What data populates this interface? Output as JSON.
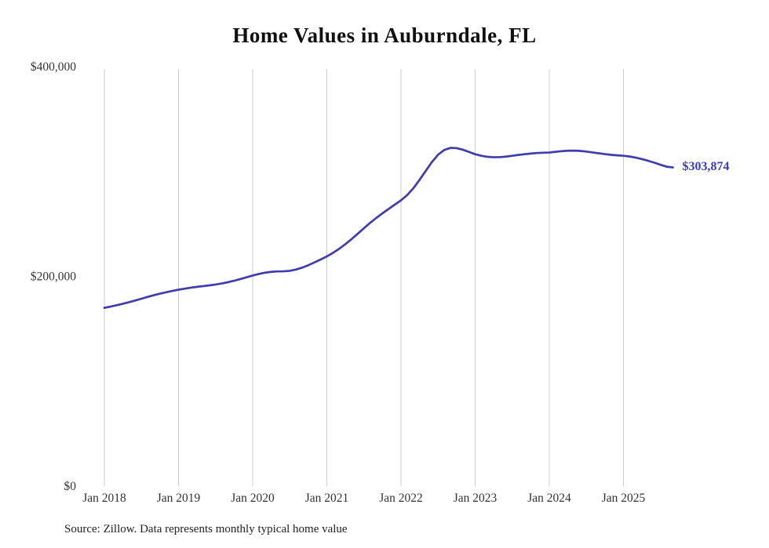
{
  "title": "Home Values in Auburndale, FL",
  "source_note": "Source: Zillow. Data represents monthly typical home value",
  "end_label": "$303,874",
  "colors": {
    "line": "#3d3db0",
    "end_label": "#3c3cbd",
    "grid": "#cccccc",
    "axis_text": "#333333",
    "title_text": "#111111",
    "background": "#ffffff"
  },
  "chart_data": {
    "type": "line",
    "title": "Home Values in Auburndale, FL",
    "xlabel": "",
    "ylabel": "",
    "x_start": "Jan 2018",
    "x_interval": "monthly",
    "x_tick_labels": [
      "Jan 2018",
      "Jan 2019",
      "Jan 2020",
      "Jan 2021",
      "Jan 2022",
      "Jan 2023",
      "Jan 2024",
      "Jan 2025"
    ],
    "y_ticks": [
      0,
      200000,
      400000
    ],
    "y_tick_labels": [
      "$0",
      "$200,000",
      "$400,000"
    ],
    "ylim": [
      0,
      400000
    ],
    "grid": "vertical-only",
    "legend": "none",
    "series": [
      {
        "name": "Typical home value",
        "values": [
          170000,
          171200,
          172500,
          173900,
          175400,
          177000,
          178700,
          180400,
          182000,
          183500,
          184800,
          186100,
          187300,
          188300,
          189200,
          190000,
          190700,
          191400,
          192200,
          193200,
          194400,
          195800,
          197400,
          199100,
          200800,
          202300,
          203500,
          204300,
          204700,
          204800,
          205300,
          206500,
          208300,
          210600,
          213300,
          216100,
          219000,
          222400,
          226300,
          230700,
          235500,
          240600,
          245900,
          251000,
          255700,
          260100,
          264300,
          268400,
          272500,
          277500,
          284000,
          292000,
          300500,
          309000,
          316000,
          320500,
          322500,
          322300,
          320800,
          318700,
          316500,
          315000,
          314000,
          313600,
          313700,
          314200,
          315000,
          315800,
          316500,
          317100,
          317600,
          317900,
          318100,
          318800,
          319400,
          319800,
          319900,
          319600,
          319000,
          318200,
          317400,
          316600,
          315900,
          315400,
          315000,
          314300,
          313200,
          311800,
          310200,
          308400,
          306400,
          304600,
          303874
        ]
      }
    ],
    "end_value": 303874
  }
}
